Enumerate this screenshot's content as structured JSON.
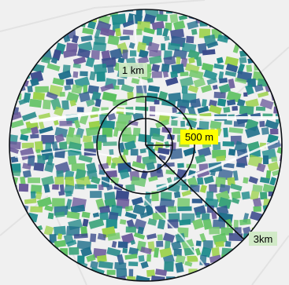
{
  "map": {
    "colors": {
      "ring": "#0b0f14",
      "basemap": "#efefef",
      "label_bg": "#cfe9c4",
      "label_highlight_bg": "#ffff00",
      "parcel_palette": [
        "#2b8c8c",
        "#1f6f8b",
        "#3aa37a",
        "#5cc060",
        "#9bd14a",
        "#2d5b8f",
        "#3b4b8c",
        "#6a5a9a",
        "#1a8a8a",
        "#73c86b"
      ]
    },
    "distance_labels": {
      "inner": "500 m",
      "middle": "1 km",
      "outer": "3km"
    }
  }
}
